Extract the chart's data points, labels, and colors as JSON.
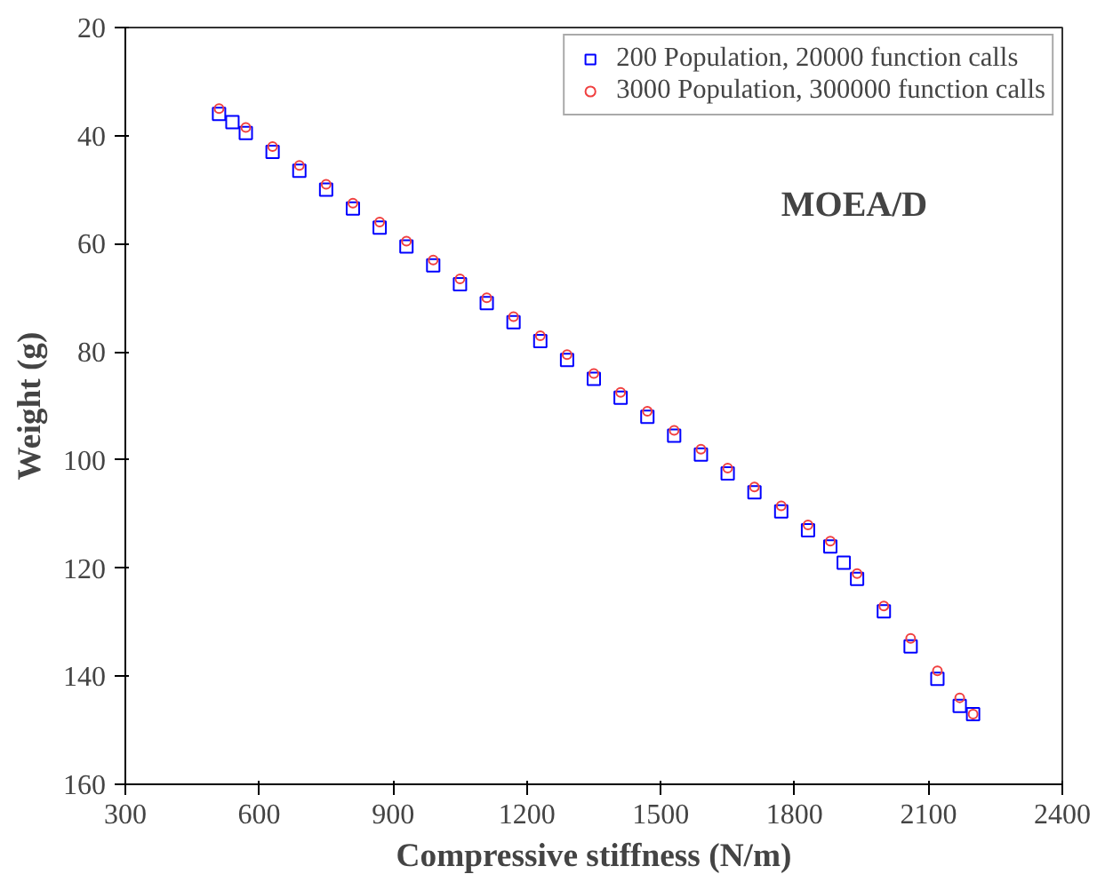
{
  "chart_data": {
    "type": "scatter",
    "xlabel": "Compressive stiffness (N/m)",
    "ylabel": "Weight (g)",
    "xlim": [
      300,
      2400
    ],
    "ylim": [
      160,
      20
    ],
    "xticks": [
      300,
      600,
      900,
      1200,
      1500,
      1800,
      2100,
      2400
    ],
    "yticks": [
      20,
      40,
      60,
      80,
      100,
      120,
      140,
      160
    ],
    "grid": false,
    "legend": "top right",
    "annotations": [
      "MOEA/D"
    ],
    "series": [
      {
        "name": "200 Population, 20000 function calls",
        "color": "#0000ff",
        "marker": "square",
        "x": [
          510,
          540,
          570,
          630,
          690,
          750,
          810,
          870,
          930,
          990,
          1050,
          1110,
          1170,
          1230,
          1290,
          1350,
          1410,
          1470,
          1530,
          1590,
          1650,
          1710,
          1770,
          1830,
          1880,
          1910,
          1940,
          2000,
          2060,
          2120,
          2170,
          2200
        ],
        "values": [
          36,
          37.5,
          39.5,
          43,
          46.5,
          50,
          53.5,
          57,
          60.5,
          64,
          67.5,
          71,
          74.5,
          78,
          81.5,
          85,
          88.5,
          92,
          95.5,
          99,
          102.5,
          106,
          109.5,
          113,
          116,
          119,
          122,
          128,
          134.5,
          140.5,
          145.5,
          147
        ]
      },
      {
        "name": "3000 Population, 300000 function calls",
        "color": "#f04040",
        "marker": "circle",
        "x": [
          510,
          570,
          630,
          690,
          750,
          810,
          870,
          930,
          990,
          1050,
          1110,
          1170,
          1230,
          1290,
          1350,
          1410,
          1470,
          1530,
          1590,
          1650,
          1710,
          1770,
          1830,
          1880,
          1940,
          2000,
          2060,
          2120,
          2170,
          2200
        ],
        "values": [
          35,
          38.5,
          42,
          45.5,
          49,
          52.5,
          56,
          59.5,
          63,
          66.5,
          70,
          73.5,
          77,
          80.5,
          84,
          87.5,
          91,
          94.5,
          98,
          101.5,
          105,
          108.5,
          112,
          115,
          121,
          127,
          133,
          139,
          144,
          147
        ]
      }
    ]
  }
}
